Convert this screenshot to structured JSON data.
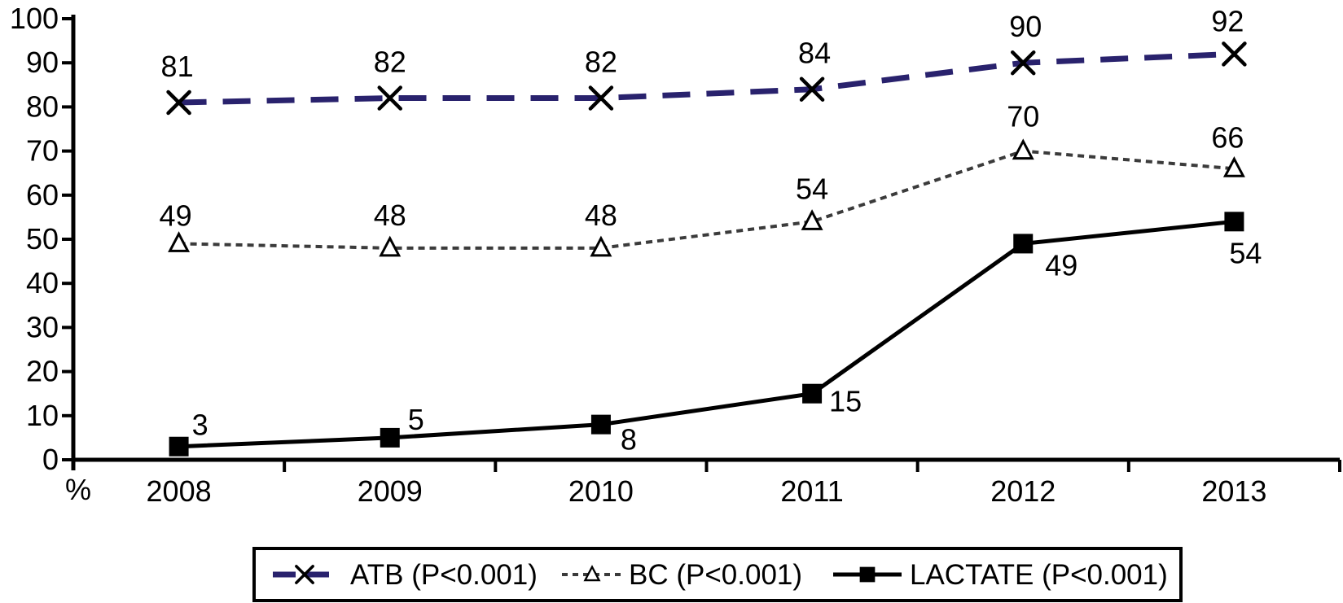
{
  "figure": {
    "background_color": "#ffffff",
    "text_color": "#000000",
    "axis_color": "#000000"
  },
  "chart_data": {
    "type": "line",
    "title": "",
    "xlabel": "",
    "ylabel": "%",
    "ylim": [
      0,
      100
    ],
    "ytick_step": 10,
    "ytick_labels": [
      "0",
      "10",
      "20",
      "30",
      "40",
      "50",
      "60",
      "70",
      "80",
      "90",
      "100"
    ],
    "categories": [
      "2008",
      "2009",
      "2010",
      "2011",
      "2012",
      "2013"
    ],
    "grid": "off",
    "legend_position": "bottom",
    "series": [
      {
        "name": "ATB (P<0.001)",
        "key": "atb",
        "values": [
          81,
          82,
          82,
          84,
          90,
          92
        ],
        "color": "#29226d",
        "marker": "x-cross",
        "marker_color": "#000000",
        "line_style": "dashed",
        "label_offsets": [
          [
            -2,
            -44
          ],
          [
            0,
            -44
          ],
          [
            0,
            -44
          ],
          [
            3,
            -44
          ],
          [
            3,
            -44
          ],
          [
            -8,
            -40
          ]
        ]
      },
      {
        "name": "BC (P<0.001)",
        "key": "bc",
        "values": [
          49,
          48,
          48,
          54,
          70,
          66
        ],
        "color": "#3b3b3b",
        "marker": "triangle-open",
        "marker_color": "#000000",
        "line_style": "dotted",
        "label_offsets": [
          [
            -4,
            -34
          ],
          [
            0,
            -40
          ],
          [
            0,
            -40
          ],
          [
            0,
            -40
          ],
          [
            0,
            -42
          ],
          [
            -8,
            -38
          ]
        ]
      },
      {
        "name": "LACTATE (P<0.001)",
        "key": "lactate",
        "values": [
          3,
          5,
          8,
          15,
          49,
          54
        ],
        "color": "#000000",
        "marker": "square-filled",
        "marker_color": "#000000",
        "line_style": "solid",
        "label_offsets": [
          [
            26,
            -26
          ],
          [
            32,
            -22
          ],
          [
            34,
            19
          ],
          [
            41,
            10
          ],
          [
            47,
            27
          ],
          [
            14,
            39
          ]
        ]
      }
    ]
  }
}
